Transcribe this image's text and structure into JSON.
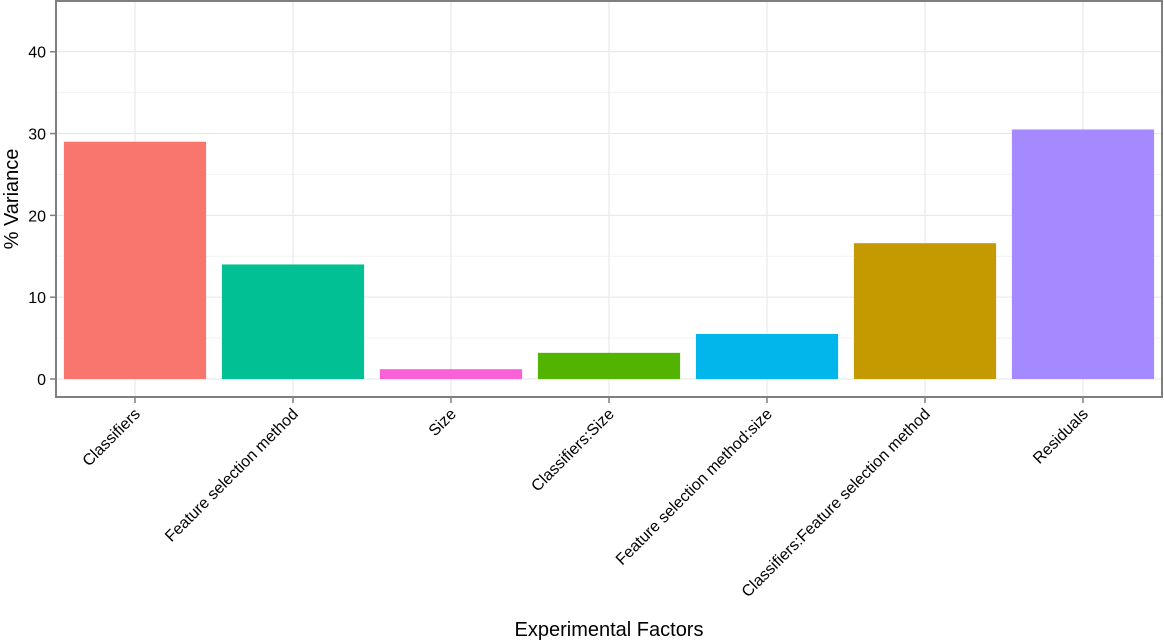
{
  "chart_data": {
    "type": "bar",
    "title": "",
    "xlabel": "Experimental Factors",
    "ylabel": "% Variance",
    "ylim": [
      -2.2,
      46.2
    ],
    "yticks": [
      0,
      10,
      20,
      30,
      40
    ],
    "grid": true,
    "categories": [
      "Classifiers",
      "Feature selection method",
      "Size",
      "Classifiers:Size",
      "Feature selection method:size",
      "Classifiers:Feature selection method",
      "Residuals"
    ],
    "values": [
      29.0,
      14.0,
      1.2,
      3.2,
      5.5,
      16.6,
      30.5
    ],
    "colors": [
      "#F8766D",
      "#00C094",
      "#FB61D7",
      "#53B400",
      "#00B6EB",
      "#C49A00",
      "#A58AFF"
    ]
  }
}
